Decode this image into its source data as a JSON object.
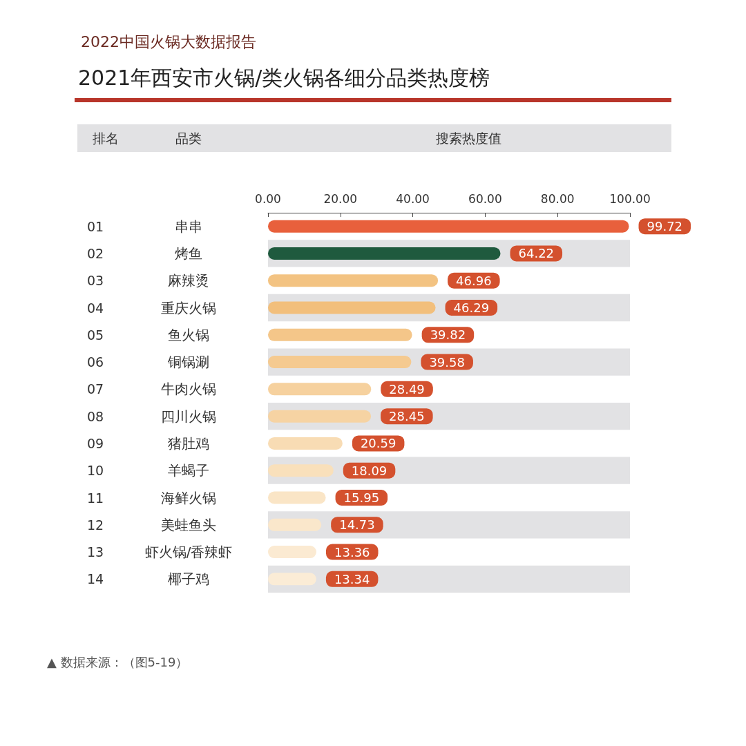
{
  "chart_data": {
    "type": "bar",
    "orientation": "horizontal",
    "title": "2022中国火锅大数据报告",
    "subtitle": "2021年西安市火锅/类火锅各细分品类热度榜",
    "ylabel": "品类",
    "xlabel": "搜索热度值",
    "categories": [
      "串串",
      "烤鱼",
      "麻辣烫",
      "重庆火锅",
      "鱼火锅",
      "铜锅涮",
      "牛肉火锅",
      "四川火锅",
      "猪肚鸡",
      "羊蝎子",
      "海鲜火锅",
      "美蛙鱼头",
      "虾火锅/香辣虾",
      "椰子鸡"
    ],
    "values": [
      99.72,
      64.22,
      46.96,
      46.29,
      39.82,
      39.58,
      28.49,
      28.45,
      20.59,
      18.09,
      15.95,
      14.73,
      13.36,
      13.34
    ],
    "colors": [
      "#e8603c",
      "#1f5a3e",
      "#f3c382",
      "#f2bf7c",
      "#f4c689",
      "#f5ca90",
      "#f6d19e",
      "#f6d3a3",
      "#f8dcb4",
      "#f9e0bb",
      "#fae5c6",
      "#fae7cb",
      "#fbead2",
      "#fbecd6"
    ],
    "xlim": [
      0,
      100
    ],
    "xticks": [
      {
        "value": 0,
        "label": "0.00"
      },
      {
        "value": 20,
        "label": "20.00"
      },
      {
        "value": 40,
        "label": "40.00"
      },
      {
        "value": 60,
        "label": "60.00"
      },
      {
        "value": 80,
        "label": "80.00"
      },
      {
        "value": 100,
        "label": "100.00"
      }
    ],
    "grid": false,
    "data_labels": true,
    "annotations": [
      "排名",
      "01",
      "02",
      "03",
      "04",
      "05",
      "06",
      "07",
      "08",
      "09",
      "10",
      "11",
      "12",
      "13",
      "14",
      "▲ 数据来源：（图5-19）"
    ]
  }
}
